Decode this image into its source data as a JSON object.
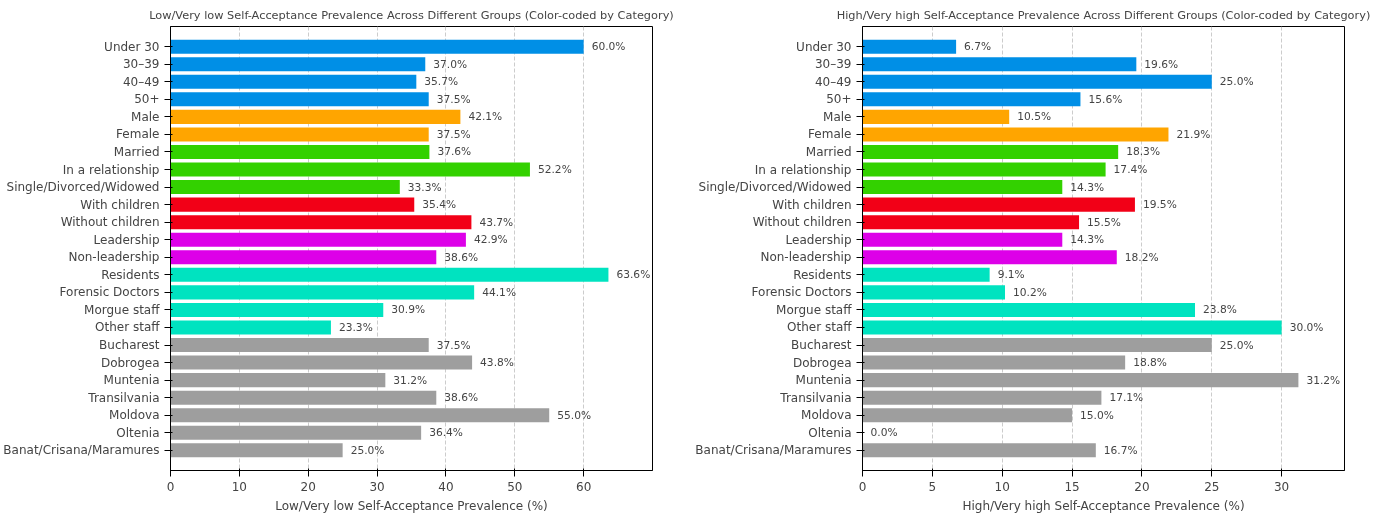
{
  "chart_data": [
    {
      "type": "bar",
      "orientation": "horizontal",
      "title": "Low/Very low Self-Acceptance Prevalence Across Different Groups (Color-coded by Category)",
      "xlabel": "Low/Very low Self-Acceptance Prevalence (%)",
      "categories": [
        "Under 30",
        "30–39",
        "40–49",
        "50+",
        "Male",
        "Female",
        "Married",
        "In a relationship",
        "Single/Divorced/Widowed",
        "With children",
        "Without children",
        "Leadership",
        "Non-leadership",
        "Residents",
        "Forensic Doctors",
        "Morgue staff",
        "Other staff",
        "Bucharest",
        "Dobrogea",
        "Muntenia",
        "Transilvania",
        "Moldova",
        "Oltenia",
        "Banat/Crisana/Maramures"
      ],
      "values": [
        60.0,
        37.0,
        35.7,
        37.5,
        42.1,
        37.5,
        37.6,
        52.2,
        33.3,
        35.4,
        43.7,
        42.9,
        38.6,
        63.6,
        44.1,
        30.9,
        23.3,
        37.5,
        43.8,
        31.2,
        38.6,
        55.0,
        36.4,
        25.0
      ],
      "value_labels": [
        "60.0%",
        "37.0%",
        "35.7%",
        "37.5%",
        "42.1%",
        "37.5%",
        "37.6%",
        "52.2%",
        "33.3%",
        "35.4%",
        "43.7%",
        "42.9%",
        "38.6%",
        "63.6%",
        "44.1%",
        "30.9%",
        "23.3%",
        "37.5%",
        "43.8%",
        "31.2%",
        "38.6%",
        "55.0%",
        "36.4%",
        "25.0%"
      ],
      "colors": [
        "#008fe6",
        "#008fe6",
        "#008fe6",
        "#008fe6",
        "#ffa500",
        "#ffa500",
        "#33d100",
        "#33d100",
        "#33d100",
        "#f20017",
        "#f20017",
        "#dd00e8",
        "#dd00e8",
        "#00e3c0",
        "#00e3c0",
        "#00e3c0",
        "#00e3c0",
        "#9e9e9e",
        "#9e9e9e",
        "#9e9e9e",
        "#9e9e9e",
        "#9e9e9e",
        "#9e9e9e",
        "#9e9e9e"
      ],
      "xlim": [
        0,
        70
      ],
      "xticks": [
        0,
        10,
        20,
        30,
        40,
        50,
        60
      ],
      "grid": "x"
    },
    {
      "type": "bar",
      "orientation": "horizontal",
      "title": "High/Very high Self-Acceptance Prevalence Across Different Groups (Color-coded by Category)",
      "xlabel": "High/Very high Self-Acceptance Prevalence (%)",
      "categories": [
        "Under 30",
        "30–39",
        "40–49",
        "50+",
        "Male",
        "Female",
        "Married",
        "In a relationship",
        "Single/Divorced/Widowed",
        "With children",
        "Without children",
        "Leadership",
        "Non-leadership",
        "Residents",
        "Forensic Doctors",
        "Morgue staff",
        "Other staff",
        "Bucharest",
        "Dobrogea",
        "Muntenia",
        "Transilvania",
        "Moldova",
        "Oltenia",
        "Banat/Crisana/Maramures"
      ],
      "values": [
        6.7,
        19.6,
        25.0,
        15.6,
        10.5,
        21.9,
        18.3,
        17.4,
        14.3,
        19.5,
        15.5,
        14.3,
        18.2,
        9.1,
        10.2,
        23.8,
        30.0,
        25.0,
        18.8,
        31.2,
        17.1,
        15.0,
        0.0,
        16.7
      ],
      "value_labels": [
        "6.7%",
        "19.6%",
        "25.0%",
        "15.6%",
        "10.5%",
        "21.9%",
        "18.3%",
        "17.4%",
        "14.3%",
        "19.5%",
        "15.5%",
        "14.3%",
        "18.2%",
        "9.1%",
        "10.2%",
        "23.8%",
        "30.0%",
        "25.0%",
        "18.8%",
        "31.2%",
        "17.1%",
        "15.0%",
        "0.0%",
        "16.7%"
      ],
      "colors": [
        "#008fe6",
        "#008fe6",
        "#008fe6",
        "#008fe6",
        "#ffa500",
        "#ffa500",
        "#33d100",
        "#33d100",
        "#33d100",
        "#f20017",
        "#f20017",
        "#dd00e8",
        "#dd00e8",
        "#00e3c0",
        "#00e3c0",
        "#00e3c0",
        "#00e3c0",
        "#9e9e9e",
        "#9e9e9e",
        "#9e9e9e",
        "#9e9e9e",
        "#9e9e9e",
        "#9e9e9e",
        "#9e9e9e"
      ],
      "xlim": [
        0,
        34.5
      ],
      "xticks": [
        0,
        5,
        10,
        15,
        20,
        25,
        30
      ],
      "grid": "x"
    }
  ]
}
